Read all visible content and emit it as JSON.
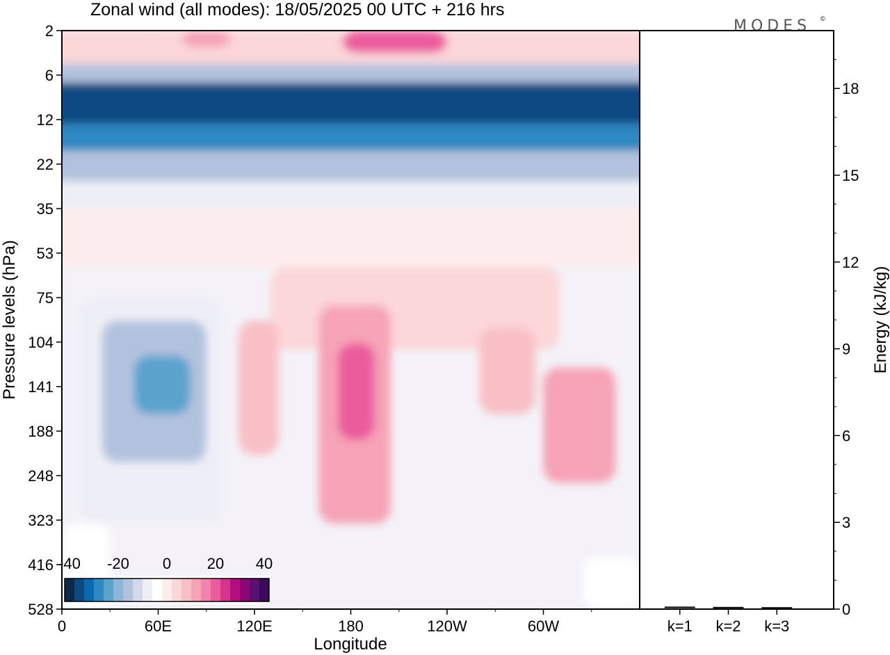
{
  "chart_data": {
    "type": "heatmap",
    "title": "Zonal wind (all modes):  18/05/2025  00 UTC  + 216 hrs",
    "logo": "MODES",
    "logo_mark": "©",
    "xlabel": "Longitude",
    "ylabel": "Pressure levels (hPa)",
    "y2label": "Energy (kJ/kg)",
    "x_ticks": [
      "0",
      "60E",
      "120E",
      "180",
      "120W",
      "60W"
    ],
    "pressure_levels": [
      "2",
      "6",
      "12",
      "22",
      "35",
      "53",
      "75",
      "104",
      "141",
      "188",
      "248",
      "323",
      "416",
      "528"
    ],
    "energy_ticks": [
      "0",
      "3",
      "6",
      "9",
      "12",
      "15",
      "18"
    ],
    "energy_range": [
      0,
      20
    ],
    "energy_categories": [
      "k=1",
      "k=2",
      "k=3"
    ],
    "energy_values": [
      0.05,
      0.04,
      0.03
    ],
    "colorbar_labels": [
      "-40",
      "-20",
      "0",
      "20",
      "40"
    ],
    "colorbar_bounds": [
      -40,
      44
    ],
    "colorbar_colors": [
      "#0d2846",
      "#0d4a82",
      "#0b6aad",
      "#2f88c1",
      "#5ca3cc",
      "#8cb5d8",
      "#b2c2de",
      "#d3d9eb",
      "#eeeef6",
      "#ffffff",
      "#fdecec",
      "#fbd6d8",
      "#f8bfc6",
      "#f6a3b7",
      "#f283ac",
      "#eb5c9d",
      "#d4338e",
      "#b30f80",
      "#8b0677",
      "#5a1070",
      "#3c0a5a"
    ],
    "wind_regions": [
      {
        "lon": [
          0,
          360
        ],
        "levels": [
          2,
          5
        ],
        "u": 6
      },
      {
        "lon": [
          175,
          240
        ],
        "levels": [
          2,
          4
        ],
        "u": 22
      },
      {
        "lon": [
          75,
          105
        ],
        "levels": [
          2,
          3.5
        ],
        "u": 12
      },
      {
        "lon": [
          0,
          360
        ],
        "levels": [
          5,
          7
        ],
        "u": -14
      },
      {
        "lon": [
          0,
          360
        ],
        "levels": [
          7,
          13
        ],
        "u": -34
      },
      {
        "lon": [
          0,
          360
        ],
        "levels": [
          13,
          19
        ],
        "u": -26
      },
      {
        "lon": [
          0,
          360
        ],
        "levels": [
          19,
          27
        ],
        "u": -16
      },
      {
        "lon": [
          0,
          360
        ],
        "levels": [
          27,
          35
        ],
        "u": -6
      },
      {
        "lon": [
          0,
          360
        ],
        "levels": [
          35,
          60
        ],
        "u": 3
      },
      {
        "lon": [
          130,
          310
        ],
        "levels": [
          60,
          110
        ],
        "u": 6
      },
      {
        "lon": [
          10,
          100
        ],
        "levels": [
          75,
          330
        ],
        "u": -6
      },
      {
        "lon": [
          25,
          90
        ],
        "levels": [
          90,
          230
        ],
        "u": -14
      },
      {
        "lon": [
          45,
          80
        ],
        "levels": [
          115,
          170
        ],
        "u": -22
      },
      {
        "lon": [
          110,
          135
        ],
        "levels": [
          90,
          220
        ],
        "u": 10
      },
      {
        "lon": [
          160,
          205
        ],
        "levels": [
          80,
          330
        ],
        "u": 12
      },
      {
        "lon": [
          172,
          195
        ],
        "levels": [
          105,
          200
        ],
        "u": 20
      },
      {
        "lon": [
          260,
          295
        ],
        "levels": [
          95,
          170
        ],
        "u": 10
      },
      {
        "lon": [
          300,
          345
        ],
        "levels": [
          125,
          260
        ],
        "u": 12
      },
      {
        "lon": [
          0,
          30
        ],
        "levels": [
          330,
          528
        ],
        "u": -4
      },
      {
        "lon": [
          325,
          360
        ],
        "levels": [
          400,
          528
        ],
        "u": -4
      }
    ]
  }
}
